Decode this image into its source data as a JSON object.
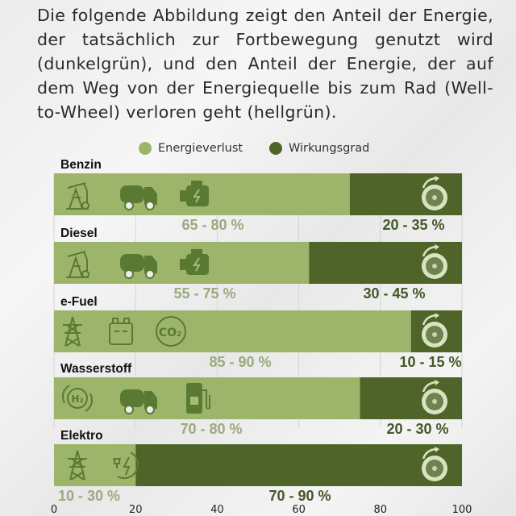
{
  "intro_text": "Die folgende Abbildung zeigt den Anteil der Energie, der tatsächlich zur Fortbewegung genutzt wird (dunkelgrün), und den Anteil der Energie, der auf dem  Weg von der Energiequelle bis zum Rad (Well-to-Wheel) verloren geht (hellgrün).",
  "chart_data": {
    "type": "bar",
    "orientation": "horizontal",
    "stacked": true,
    "categories": [
      "Benzin",
      "Diesel",
      "e-Fuel",
      "Wasserstoff",
      "Elektro"
    ],
    "series": [
      {
        "name": "Energieverlust",
        "color": "#9db56b",
        "values": [
          72.5,
          62.5,
          87.5,
          75,
          20
        ],
        "labels": [
          "65 - 80 %",
          "55 - 75 %",
          "85 - 90 %",
          "70 - 80 %",
          "10 - 30 %"
        ]
      },
      {
        "name": "Wirkungsgrad",
        "color": "#4e6428",
        "values": [
          27.5,
          37.5,
          12.5,
          25,
          80
        ],
        "labels": [
          "20 - 35 %",
          "30 - 45 %",
          "10 - 15 %",
          "20 - 30 %",
          "70 - 90 %"
        ]
      }
    ],
    "icons": [
      [
        "oil-pump-icon",
        "tanker-truck-icon",
        "engine-icon"
      ],
      [
        "oil-pump-icon",
        "tanker-truck-icon",
        "engine-icon"
      ],
      [
        "power-pylon-icon",
        "battery-icon",
        "co2-icon"
      ],
      [
        "h2-leaf-icon",
        "tanker-truck-icon",
        "h2-fuel-pump-icon"
      ],
      [
        "power-pylon-icon",
        "plug-charge-icon"
      ]
    ],
    "end_icon": "wheel-icon",
    "xlim": [
      0,
      100
    ],
    "xticks": [
      0,
      20,
      40,
      60,
      80,
      100
    ],
    "grid": true,
    "legend_position": "top"
  }
}
